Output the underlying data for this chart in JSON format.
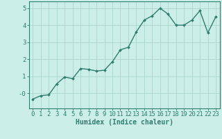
{
  "x": [
    0,
    1,
    2,
    3,
    4,
    5,
    6,
    7,
    8,
    9,
    10,
    11,
    12,
    13,
    14,
    15,
    16,
    17,
    18,
    19,
    20,
    21,
    22,
    23
  ],
  "y": [
    -0.35,
    -0.15,
    -0.1,
    0.55,
    0.95,
    0.85,
    1.45,
    1.4,
    1.3,
    1.35,
    1.85,
    2.55,
    2.7,
    3.6,
    4.3,
    4.55,
    5.0,
    4.65,
    4.0,
    4.0,
    4.3,
    4.85,
    3.55,
    4.5
  ],
  "line_color": "#2e7d6e",
  "marker": "D",
  "marker_size": 2.0,
  "bg_color": "#cceee8",
  "grid_color": "#aad4cc",
  "xlabel": "Humidex (Indice chaleur)",
  "xlabel_fontsize": 7,
  "tick_fontsize": 6.5,
  "ylim": [
    -0.9,
    5.4
  ],
  "xlim": [
    -0.5,
    23.5
  ],
  "yticks": [
    0,
    1,
    2,
    3,
    4,
    5
  ],
  "ytick_labels": [
    "-0",
    "1",
    "2",
    "3",
    "4",
    "5"
  ],
  "xticks": [
    0,
    1,
    2,
    3,
    4,
    5,
    6,
    7,
    8,
    9,
    10,
    11,
    12,
    13,
    14,
    15,
    16,
    17,
    18,
    19,
    20,
    21,
    22,
    23
  ],
  "line_width": 1.0,
  "ax_color": "#2e7d6e"
}
